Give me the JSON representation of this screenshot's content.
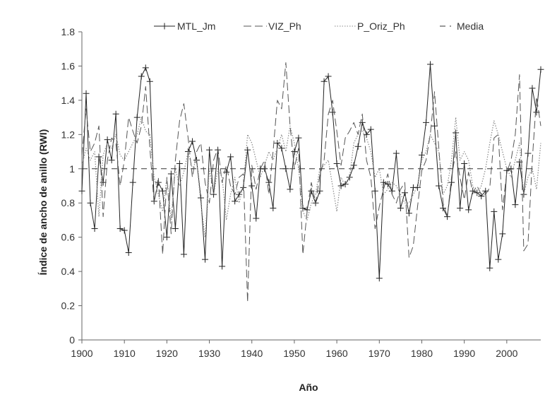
{
  "chart_data": {
    "type": "line",
    "xlabel": "Año",
    "ylabel": "Índice de ancho de anillo (RWI)",
    "xlim": [
      1900,
      2008
    ],
    "ylim": [
      0,
      1.8
    ],
    "xticks": [
      1900,
      1910,
      1920,
      1930,
      1940,
      1950,
      1960,
      1970,
      1980,
      1990,
      2000
    ],
    "xtick_labels": [
      "1900",
      "1910",
      "1920",
      "1930",
      "1940",
      "1950",
      "1960",
      "1970",
      "1980",
      "1990",
      "2000"
    ],
    "yticks": [
      0,
      0.2,
      0.4,
      0.6,
      0.8,
      1,
      1.2,
      1.4,
      1.6,
      1.8
    ],
    "ytick_labels": [
      "0",
      "0.2",
      "0.4",
      "0.6",
      "0.8",
      "1",
      "1.2",
      "1.4",
      "1.6",
      "1.8"
    ],
    "grid": false,
    "legend_position": "top",
    "x_start": 1900,
    "series": [
      {
        "name": "MTL_Jm",
        "style": "solid-plus",
        "color": "#222222",
        "values": [
          0.87,
          1.44,
          0.8,
          0.65,
          1.07,
          0.92,
          1.17,
          1.05,
          1.32,
          0.65,
          0.64,
          0.51,
          0.92,
          1.3,
          1.54,
          1.59,
          1.51,
          0.81,
          0.92,
          0.87,
          0.6,
          0.97,
          0.65,
          1.03,
          0.5,
          1.1,
          1.16,
          1.05,
          0.83,
          0.47,
          1.11,
          0.85,
          1.11,
          0.43,
          0.98,
          1.07,
          0.81,
          0.85,
          0.89,
          1.11,
          0.9,
          0.71,
          1.0,
          1.0,
          0.92,
          0.77,
          1.15,
          1.12,
          1.0,
          0.88,
          1.1,
          1.18,
          0.77,
          0.76,
          0.87,
          0.8,
          0.87,
          1.51,
          1.54,
          1.33,
          1.03,
          0.9,
          0.91,
          0.95,
          1.02,
          1.13,
          1.27,
          1.2,
          1.23,
          0.87,
          0.36,
          0.92,
          0.91,
          0.87,
          1.09,
          0.77,
          0.86,
          0.74,
          0.89,
          0.89,
          1.08,
          1.27,
          1.61,
          1.25,
          0.9,
          0.77,
          0.72,
          0.92,
          1.21,
          0.77,
          1.03,
          0.76,
          0.87,
          0.86,
          0.84,
          0.87,
          0.42,
          0.75,
          0.47,
          0.62,
          0.99,
          1.0,
          0.79,
          1.04,
          0.85,
          1.09,
          1.47,
          1.33,
          1.58
        ]
      },
      {
        "name": "VIZ_Ph",
        "style": "long-dash",
        "color": "#555555",
        "values": [
          1.08,
          1.35,
          1.1,
          1.15,
          1.25,
          0.72,
          1.05,
          1.18,
          1.15,
          0.9,
          1.05,
          1.3,
          1.22,
          1.15,
          1.25,
          1.48,
          1.12,
          0.8,
          0.95,
          0.5,
          0.95,
          0.62,
          1.05,
          1.28,
          1.38,
          1.18,
          0.95,
          1.1,
          1.15,
          0.92,
          0.8,
          1.05,
          1.12,
          0.92,
          1.02,
          0.9,
          0.85,
          0.95,
          0.97,
          0.22,
          1.02,
          0.88,
          1.0,
          1.05,
          0.85,
          1.1,
          1.4,
          1.35,
          1.62,
          1.25,
          1.0,
          1.12,
          0.5,
          0.75,
          0.92,
          0.8,
          0.96,
          1.05,
          1.32,
          1.4,
          1.22,
          1.02,
          1.18,
          1.22,
          1.27,
          1.2,
          1.32,
          1.05,
          0.95,
          0.65,
          0.78,
          0.88,
          0.97,
          0.85,
          0.8,
          0.88,
          0.92,
          0.48,
          0.55,
          0.78,
          0.99,
          1.05,
          1.2,
          1.45,
          1.12,
          0.8,
          0.72,
          0.95,
          1.1,
          0.95,
          0.82,
          0.98,
          0.86,
          0.9,
          0.85,
          0.85,
          0.89,
          1.18,
          1.2,
          0.76,
          0.98,
          1.05,
          1.2,
          1.55,
          0.52,
          0.56,
          1.05,
          1.42,
          1.25
        ]
      },
      {
        "name": "P_Oriz_Ph",
        "style": "dotted",
        "color": "#888888",
        "values": [
          1.02,
          1.12,
          1.05,
          1.1,
          0.72,
          1.08,
          1.15,
          1.12,
          1.2,
          1.08,
          1.05,
          1.1,
          1.15,
          1.2,
          1.3,
          1.22,
          1.2,
          0.95,
          0.85,
          0.75,
          0.95,
          0.7,
          1.0,
          0.9,
          0.98,
          1.1,
          1.0,
          1.05,
          0.8,
          0.6,
          1.0,
          0.85,
          1.0,
          0.95,
          0.7,
          0.85,
          0.95,
          0.8,
          0.9,
          1.2,
          1.15,
          1.05,
          0.95,
          1.02,
          1.1,
          1.05,
          1.12,
          1.2,
          1.1,
          1.25,
          1.15,
          1.0,
          0.75,
          0.7,
          0.8,
          0.85,
          1.0,
          1.02,
          1.05,
          0.9,
          0.75,
          0.95,
          0.9,
          0.95,
          1.15,
          1.2,
          1.22,
          1.18,
          1.1,
          0.95,
          1.0,
          0.85,
          0.88,
          0.92,
          0.9,
          0.85,
          0.8,
          0.8,
          0.85,
          0.9,
          1.05,
          1.1,
          1.2,
          1.15,
          1.1,
          0.85,
          0.9,
          1.05,
          1.3,
          1.05,
          1.1,
          1.05,
          0.9,
          0.85,
          0.9,
          1.0,
          1.15,
          1.28,
          1.2,
          1.1,
          1.0,
          0.95,
          1.05,
          1.15,
          0.85,
          0.95,
          1.0,
          0.88,
          1.15
        ]
      },
      {
        "name": "Media",
        "style": "medium-dash",
        "color": "#333333",
        "x": [
          1900,
          2007
        ],
        "values": [
          1,
          1
        ]
      }
    ]
  }
}
